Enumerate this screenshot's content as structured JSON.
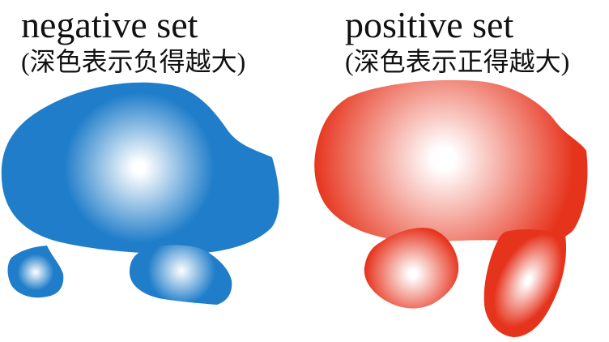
{
  "negative": {
    "title": "negative set",
    "note": "(深色表示负得越大)",
    "color": "#1f7dc9",
    "highlight": "#ffffff"
  },
  "positive": {
    "title": "positive set",
    "note": "(深色表示正得越大)",
    "color": "#e6331c",
    "highlight": "#ffffff"
  }
}
